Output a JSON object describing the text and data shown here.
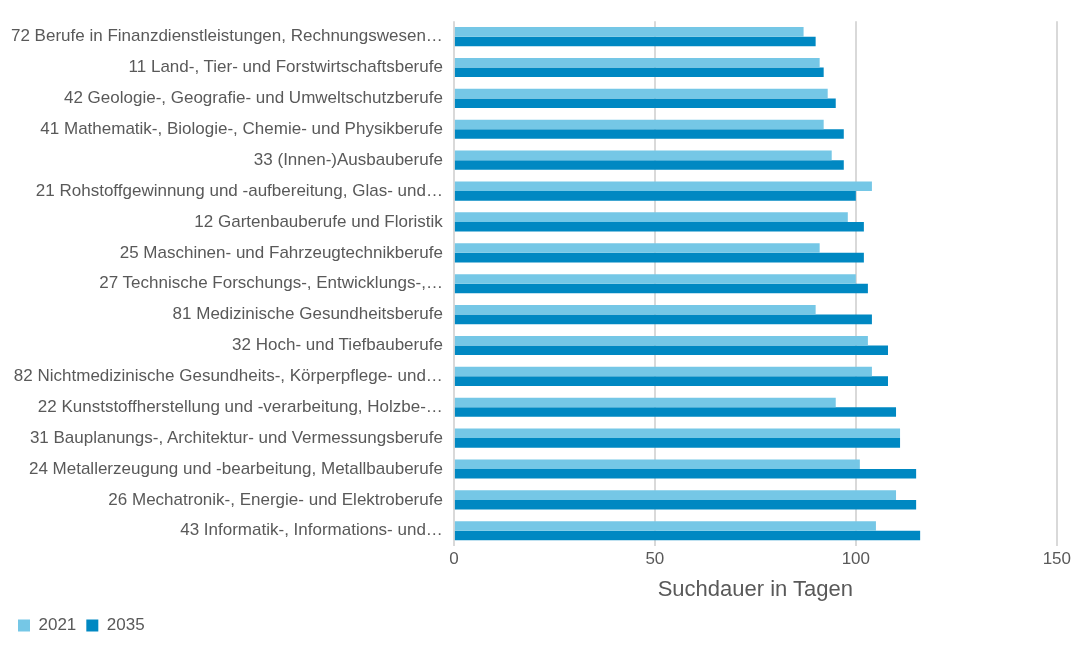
{
  "chart_data": {
    "type": "bar",
    "orientation": "horizontal",
    "xlabel": "Suchdauer in Tagen",
    "categories": [
      "72 Berufe in Finanzdienstleistungen, Rechnungswesen…",
      "11 Land-, Tier- und Forstwirtschaftsberufe",
      "42 Geologie-, Geografie- und Umweltschutzberufe",
      "41 Mathematik-, Biologie-, Chemie- und Physikberufe",
      "33 (Innen-)Ausbauberufe",
      "21 Rohstoffgewinnung und -aufbereitung, Glas- und…",
      "12 Gartenbauberufe und Floristik",
      "25 Maschinen- und Fahrzeugtechnikberufe",
      "27 Technische Forschungs-, Entwicklungs-,…",
      "81 Medizinische Gesundheitsberufe",
      "32 Hoch- und Tiefbauberufe",
      "82 Nichtmedizinische Gesundheits-, Körperpflege- und…",
      "22 Kunststoffherstellung und -verarbeitung, Holzbe-…",
      "31 Bauplanungs-, Architektur- und Vermessungsberufe",
      "24 Metallerzeugung und -bearbeitung, Metallbauberufe",
      "26 Mechatronik-, Energie- und Elektroberufe",
      "43 Informatik-, Informations- und…"
    ],
    "series": [
      {
        "name": "2021",
        "color": "#75c7e6",
        "values": [
          87,
          91,
          93,
          92,
          94,
          104,
          98,
          91,
          100,
          90,
          103,
          104,
          95,
          111,
          101,
          110,
          105
        ]
      },
      {
        "name": "2035",
        "color": "#0088c2",
        "values": [
          90,
          92,
          95,
          97,
          97,
          100,
          102,
          102,
          103,
          104,
          108,
          108,
          110,
          111,
          115,
          115,
          116
        ]
      }
    ],
    "xlim": [
      0,
      150
    ],
    "xticks": [
      0,
      50,
      100,
      150
    ],
    "grid": "x",
    "legend": "bottom left"
  }
}
